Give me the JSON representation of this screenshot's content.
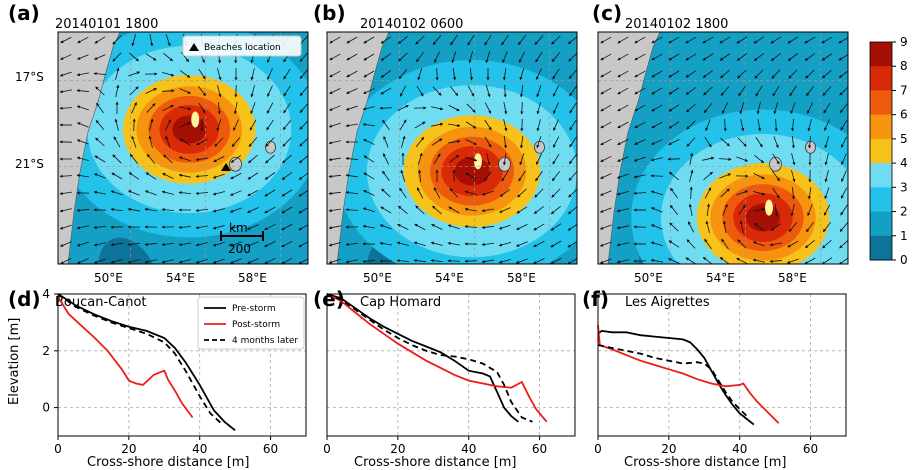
{
  "colors": {
    "ocean_levels": [
      "#0a4a6e",
      "#0d7398",
      "#149fc4",
      "#22c2ea",
      "#6fdcf2",
      "#f7c21a",
      "#f6930f",
      "#ee5a0d",
      "#d92a08",
      "#a50f04"
    ],
    "land": "#c8c8c8",
    "pre_storm": "#000000",
    "post_storm": "#ee1c1c",
    "later": "#000000"
  },
  "maps": {
    "panels": [
      {
        "letter": "(a)",
        "title": "20140101 1800",
        "cyclone_level": 9,
        "legend_label": "Beaches location",
        "scale_unit": "km",
        "scale_value": "200"
      },
      {
        "letter": "(b)",
        "title": "20140102 0600",
        "cyclone_level": 9,
        "legend_label": "",
        "scale_unit": "",
        "scale_value": ""
      },
      {
        "letter": "(c)",
        "title": "20140102 1800",
        "cyclone_level": 9,
        "legend_label": "",
        "scale_unit": "",
        "scale_value": ""
      }
    ],
    "lat_ticks": [
      "17°S",
      "21°S"
    ],
    "lon_ticks": [
      "50°E",
      "54°E",
      "58°E"
    ]
  },
  "colorbar": {
    "ticks": [
      "9",
      "8",
      "7",
      "6",
      "5",
      "4",
      "3",
      "2",
      "1",
      "0"
    ]
  },
  "chart_data": [
    {
      "type": "line",
      "letter": "(d)",
      "title": "Boucan-Canot",
      "xlabel": "Cross-shore distance [m]",
      "ylabel": "Elevation [m]",
      "xlim": [
        0,
        70
      ],
      "ylim": [
        -1,
        4
      ],
      "xticks": [
        "0",
        "20",
        "40",
        "60"
      ],
      "yticks": [
        "4",
        "2",
        "0"
      ],
      "legend": [
        "Pre-storm",
        "Post-storm",
        "4 months later"
      ],
      "grid": true,
      "series": [
        {
          "name": "Pre-storm",
          "x": [
            0,
            5,
            10,
            15,
            20,
            25,
            30,
            33,
            36,
            40,
            44,
            47,
            50
          ],
          "y": [
            4.0,
            3.6,
            3.3,
            3.05,
            2.85,
            2.7,
            2.45,
            2.1,
            1.6,
            0.8,
            -0.1,
            -0.5,
            -0.8
          ]
        },
        {
          "name": "Post-storm",
          "x": [
            0,
            3,
            6,
            10,
            14,
            18,
            20,
            22,
            24,
            27,
            29,
            30,
            31,
            33,
            35,
            38
          ],
          "y": [
            3.9,
            3.3,
            2.95,
            2.5,
            2.0,
            1.35,
            0.95,
            0.85,
            0.8,
            1.15,
            1.25,
            1.3,
            1.0,
            0.6,
            0.15,
            -0.35
          ]
        },
        {
          "name": "4 months later",
          "x": [
            0,
            5,
            10,
            15,
            20,
            25,
            30,
            33,
            36,
            40,
            43,
            46
          ],
          "y": [
            4.0,
            3.55,
            3.25,
            3.0,
            2.8,
            2.6,
            2.3,
            1.9,
            1.3,
            0.4,
            -0.2,
            -0.55
          ]
        }
      ]
    },
    {
      "type": "line",
      "letter": "(e)",
      "title": "Cap Homard",
      "xlabel": "Cross-shore distance [m]",
      "ylabel": "",
      "xlim": [
        0,
        70
      ],
      "ylim": [
        -1,
        4
      ],
      "xticks": [
        "0",
        "20",
        "40",
        "60"
      ],
      "yticks": [],
      "legend": [],
      "grid": true,
      "series": [
        {
          "name": "Pre-storm",
          "x": [
            0,
            4,
            8,
            12,
            16,
            20,
            24,
            28,
            32,
            36,
            40,
            44,
            46,
            48,
            50,
            52,
            54
          ],
          "y": [
            4.0,
            3.85,
            3.5,
            3.15,
            2.85,
            2.6,
            2.35,
            2.15,
            1.95,
            1.65,
            1.3,
            1.2,
            1.1,
            0.55,
            0.0,
            -0.3,
            -0.5
          ]
        },
        {
          "name": "Post-storm",
          "x": [
            0,
            4,
            8,
            12,
            16,
            20,
            24,
            28,
            32,
            36,
            40,
            44,
            48,
            52,
            55,
            57,
            59,
            61,
            62
          ],
          "y": [
            4.0,
            3.75,
            3.35,
            2.95,
            2.6,
            2.25,
            1.95,
            1.65,
            1.4,
            1.15,
            0.95,
            0.85,
            0.75,
            0.7,
            0.9,
            0.4,
            -0.05,
            -0.35,
            -0.5
          ]
        },
        {
          "name": "4 months later",
          "x": [
            0,
            4,
            8,
            12,
            16,
            20,
            24,
            28,
            32,
            36,
            40,
            44,
            48,
            50,
            52,
            55,
            58
          ],
          "y": [
            4.0,
            3.8,
            3.45,
            3.1,
            2.75,
            2.45,
            2.2,
            2.0,
            1.85,
            1.8,
            1.7,
            1.55,
            1.25,
            0.8,
            0.2,
            -0.35,
            -0.5
          ]
        }
      ]
    },
    {
      "type": "line",
      "letter": "(f)",
      "title": "Les Aigrettes",
      "xlabel": "Cross-shore distance [m]",
      "ylabel": "",
      "xlim": [
        0,
        70
      ],
      "ylim": [
        -1,
        4
      ],
      "xticks": [
        "0",
        "20",
        "40",
        "60"
      ],
      "yticks": [],
      "legend": [],
      "grid": true,
      "series": [
        {
          "name": "Pre-storm",
          "x": [
            0,
            1,
            4,
            8,
            12,
            16,
            20,
            24,
            26,
            28,
            30,
            32,
            34,
            36,
            38,
            40,
            42,
            44
          ],
          "y": [
            2.6,
            2.7,
            2.65,
            2.65,
            2.55,
            2.5,
            2.45,
            2.4,
            2.3,
            2.05,
            1.75,
            1.3,
            0.85,
            0.45,
            0.1,
            -0.2,
            -0.4,
            -0.6
          ]
        },
        {
          "name": "Post-storm",
          "x": [
            0,
            0.5,
            4,
            8,
            12,
            16,
            20,
            24,
            28,
            32,
            36,
            40,
            41,
            43,
            45,
            47,
            49,
            51
          ],
          "y": [
            2.9,
            2.2,
            2.05,
            1.85,
            1.65,
            1.5,
            1.35,
            1.2,
            1.0,
            0.85,
            0.75,
            0.8,
            0.85,
            0.5,
            0.2,
            -0.05,
            -0.3,
            -0.55
          ]
        },
        {
          "name": "4 months later",
          "x": [
            0,
            4,
            8,
            12,
            16,
            20,
            24,
            28,
            30,
            32,
            34,
            36,
            38,
            40,
            42
          ],
          "y": [
            2.2,
            2.1,
            2.0,
            1.9,
            1.75,
            1.65,
            1.55,
            1.6,
            1.55,
            1.35,
            0.95,
            0.55,
            0.2,
            -0.05,
            -0.3
          ]
        }
      ]
    }
  ]
}
